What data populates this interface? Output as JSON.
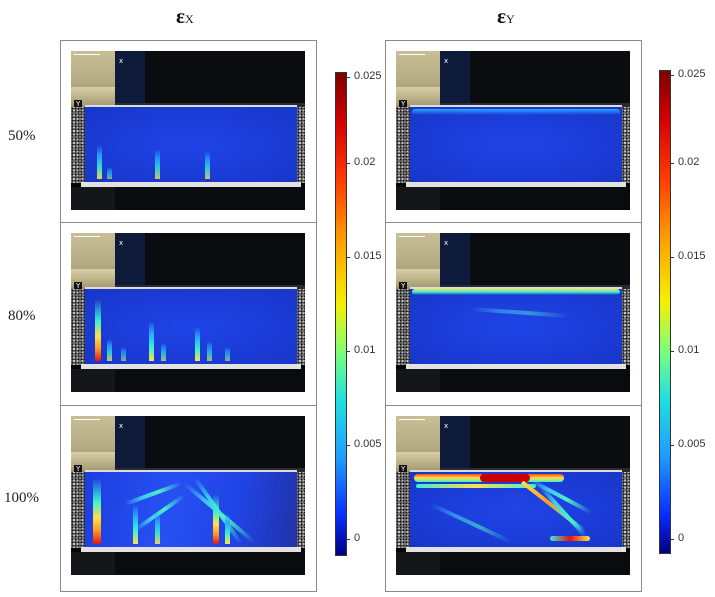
{
  "columns": [
    {
      "symbol": "ε",
      "sub": "X"
    },
    {
      "symbol": "ε",
      "sub": "Y"
    }
  ],
  "rows": [
    "50%",
    "80%",
    "100%"
  ],
  "panel_icon_labels": {
    "x": "x",
    "y": "Y"
  },
  "colorbar": {
    "ticks": [
      "0.025",
      "0.02",
      "0.015",
      "0.01",
      "0.005",
      "0"
    ],
    "colormap": [
      "#7b0000",
      "#d40000",
      "#ff3a00",
      "#ffa000",
      "#f6f000",
      "#7cff7a",
      "#1fe0e0",
      "#1f9bff",
      "#0a2cff",
      "#000080"
    ]
  }
}
